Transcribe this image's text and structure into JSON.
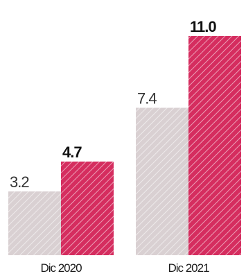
{
  "chart_data": {
    "type": "bar",
    "categories": [
      "Dic 2020",
      "Dic 2021"
    ],
    "series": [
      {
        "values": [
          3.2,
          7.4
        ],
        "labels": [
          "3.2",
          "7.4"
        ],
        "color": "#d9d0d2",
        "label_color": "#333333",
        "label_bold": false
      },
      {
        "values": [
          4.7,
          11.0
        ],
        "labels": [
          "4.7",
          "11.0"
        ],
        "color": "#d52d5f",
        "label_color": "#111111",
        "label_bold": true
      }
    ],
    "ylim": [
      0,
      11.0
    ],
    "grid": false,
    "legend": "none",
    "pattern": "diagonal-hatch"
  }
}
